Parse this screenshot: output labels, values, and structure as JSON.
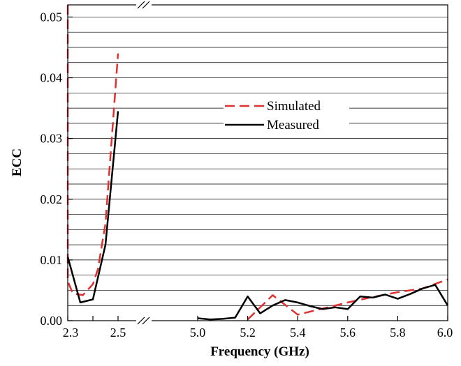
{
  "chart_data": {
    "type": "line",
    "xlabel": "Frequency (GHz)",
    "ylabel": "ECC",
    "ylim": [
      0,
      0.052
    ],
    "x_axis_break": [
      2.5,
      5.0
    ],
    "x_ticks": [
      "2.3",
      "2.5",
      "5.0",
      "5.2",
      "5.4",
      "5.6",
      "5.8",
      "6.0"
    ],
    "y_ticks": [
      "0.00",
      "0.01",
      "0.02",
      "0.03",
      "0.04",
      "0.05"
    ],
    "grid": "horizontal",
    "legend_position": "center-right",
    "series": [
      {
        "name": "Simulated",
        "color": "#e03030",
        "style": "dashed",
        "segments": [
          {
            "x": [
              2.3,
              2.3,
              2.32,
              2.36,
              2.4,
              2.42,
              2.45,
              2.5
            ],
            "y": [
              0.052,
              0.0065,
              0.0045,
              0.0042,
              0.006,
              0.0085,
              0.016,
              0.044
            ]
          },
          {
            "x": [
              5.2,
              5.3,
              5.4,
              5.5,
              5.6,
              5.7,
              5.8,
              5.9,
              6.0
            ],
            "y": [
              0.0002,
              0.0042,
              0.001,
              0.002,
              0.003,
              0.0039,
              0.0047,
              0.0053,
              0.0068
            ]
          }
        ]
      },
      {
        "name": "Measured",
        "color": "#000000",
        "style": "solid",
        "segments": [
          {
            "x": [
              2.3,
              2.35,
              2.4,
              2.45,
              2.5
            ],
            "y": [
              0.0105,
              0.003,
              0.0035,
              0.0125,
              0.0345
            ]
          },
          {
            "x": [
              5.0,
              5.05,
              5.1,
              5.15,
              5.2,
              5.25,
              5.3,
              5.35,
              5.4,
              5.45,
              5.5,
              5.55,
              5.6,
              5.65,
              5.7,
              5.75,
              5.8,
              5.85,
              5.9,
              5.95,
              6.0
            ],
            "y": [
              0.0004,
              0.0002,
              0.0003,
              0.0005,
              0.004,
              0.0012,
              0.0025,
              0.0034,
              0.003,
              0.0024,
              0.0019,
              0.0022,
              0.0019,
              0.004,
              0.0038,
              0.0043,
              0.0036,
              0.0044,
              0.0053,
              0.0059,
              0.0025
            ]
          }
        ]
      }
    ]
  }
}
